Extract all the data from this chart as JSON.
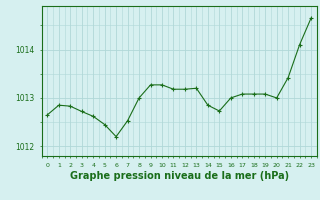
{
  "x": [
    0,
    1,
    2,
    3,
    4,
    5,
    6,
    7,
    8,
    9,
    10,
    11,
    12,
    13,
    14,
    15,
    16,
    17,
    18,
    19,
    20,
    21,
    22,
    23
  ],
  "y": [
    1012.65,
    1012.85,
    1012.83,
    1012.72,
    1012.62,
    1012.45,
    1012.2,
    1012.53,
    1013.0,
    1013.27,
    1013.27,
    1013.18,
    1013.18,
    1013.2,
    1012.85,
    1012.73,
    1013.0,
    1013.08,
    1013.08,
    1013.08,
    1013.0,
    1013.42,
    1014.1,
    1014.65
  ],
  "line_color": "#1a6e1a",
  "marker": "+",
  "marker_size": 3,
  "bg_color": "#d6f0f0",
  "grid_color": "#b0d8d8",
  "axis_color": "#1a6e1a",
  "title": "Graphe pression niveau de la mer (hPa)",
  "title_fontsize": 7,
  "ylabel_ticks": [
    1012,
    1013,
    1014
  ],
  "xlim": [
    -0.5,
    23.5
  ],
  "ylim": [
    1011.8,
    1014.9
  ],
  "xtick_labels": [
    "0",
    "1",
    "2",
    "3",
    "4",
    "5",
    "6",
    "7",
    "8",
    "9",
    "10",
    "11",
    "12",
    "13",
    "14",
    "15",
    "16",
    "17",
    "18",
    "19",
    "20",
    "21",
    "22",
    "23"
  ]
}
